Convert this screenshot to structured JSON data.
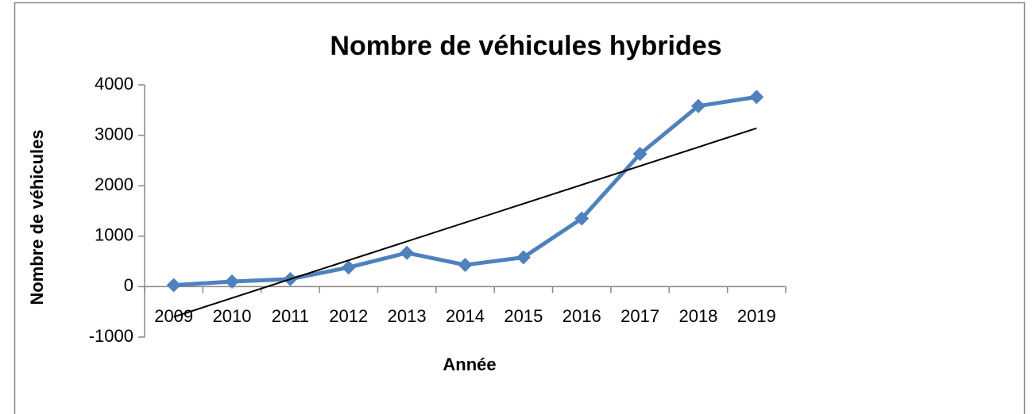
{
  "chart_data": {
    "type": "line",
    "title": "Nombre de véhicules hybrides",
    "x_label": "Année",
    "y_label": "Nombre de véhicules",
    "categories": [
      "2009",
      "2010",
      "2011",
      "2012",
      "2013",
      "2014",
      "2015",
      "2016",
      "2017",
      "2018",
      "2019"
    ],
    "series": [
      {
        "color": "#4f81bd",
        "values": [
          30,
          100,
          150,
          380,
          670,
          430,
          580,
          1350,
          2630,
          3580,
          3760
        ]
      }
    ],
    "trendline": {
      "color": "#000000",
      "values": [
        -600,
        3140
      ]
    },
    "ylim": [
      -1000,
      4000
    ],
    "yticks": [
      -1000,
      0,
      1000,
      2000,
      3000,
      4000
    ]
  }
}
